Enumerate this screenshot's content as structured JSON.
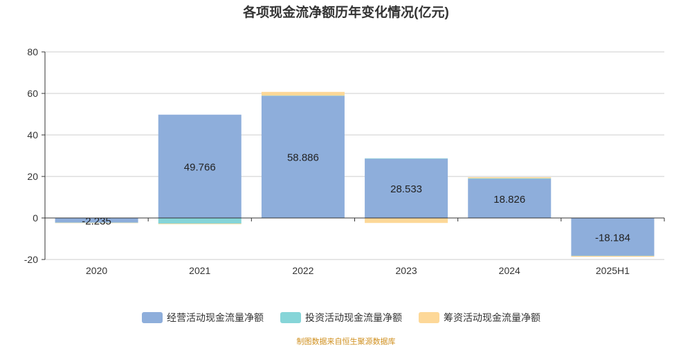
{
  "chart_data": {
    "type": "bar",
    "stacked": true,
    "title": "各项现金流净额历年变化情况(亿元)",
    "categories": [
      "2020",
      "2021",
      "2022",
      "2023",
      "2024",
      "2025H1"
    ],
    "series": [
      {
        "name": "经营活动现金流量净额",
        "color": "#8eaedb",
        "values": [
          -2.235,
          49.766,
          58.886,
          28.533,
          18.826,
          -18.184
        ],
        "labels": [
          "-2.235",
          "49.766",
          "58.886",
          "28.533",
          "18.826",
          "-18.184"
        ]
      },
      {
        "name": "投资活动现金流量净额",
        "color": "#86d5d8",
        "values": [
          -0.05,
          -2.7,
          0.05,
          0.2,
          0.3,
          -0.1
        ]
      },
      {
        "name": "筹资活动现金流量净额",
        "color": "#fdd898",
        "values": [
          -0.05,
          -0.3,
          1.8,
          -2.4,
          0.5,
          -0.4
        ]
      }
    ],
    "ylim": [
      -20,
      80
    ],
    "yticks": [
      -20,
      0,
      20,
      40,
      60,
      80
    ],
    "grid": true,
    "legend": "bottom",
    "source": "制图数据来自恒生聚源数据库"
  }
}
